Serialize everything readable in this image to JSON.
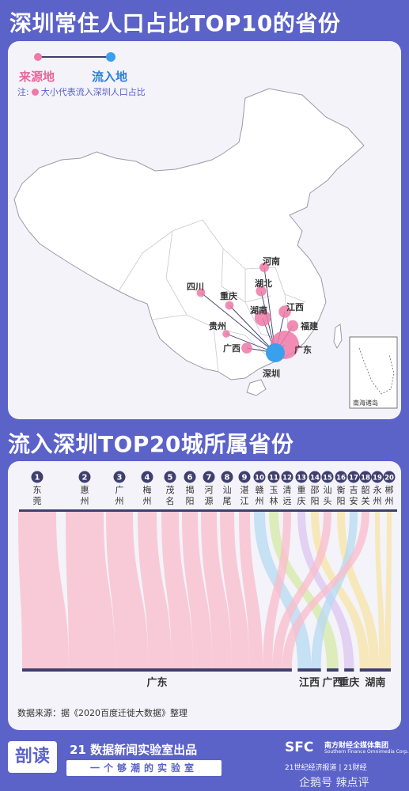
{
  "header": {
    "title": "深圳常住人口占比TOP10的省份"
  },
  "legend": {
    "source": "来源地",
    "destination": "流入地",
    "note_prefix": "注:",
    "note_text": "大小代表流入深圳人口占比",
    "source_color": "#e8659a",
    "destination_color": "#2c7fd8"
  },
  "section2": {
    "title": "流入深圳TOP20城所属省份"
  },
  "source_note": "数据来源：据《2020百度迁徙大数据》整理",
  "footer": {
    "logo": "剖读",
    "line1": "21 数据新闻实验室出品",
    "line2": "一个够潮的实验室",
    "sfc": "SFC",
    "sfc_cn": "南方财经全媒体集团",
    "sfc_en": "Southern Finance Omnimedia Corp.",
    "brands": "21世纪经济报道 | 21财经",
    "watermark": "企鹅号 辣点评"
  },
  "chart_data": [
    {
      "type": "flow-map",
      "title": "深圳常住人口占比TOP10的省份",
      "destination": "深圳",
      "sources": [
        {
          "name": "广东",
          "size": 5
        },
        {
          "name": "福建",
          "size": 1.4
        },
        {
          "name": "江西",
          "size": 1.6
        },
        {
          "name": "湖南",
          "size": 2.4
        },
        {
          "name": "湖北",
          "size": 1.2
        },
        {
          "name": "河南",
          "size": 1
        },
        {
          "name": "重庆",
          "size": 0.8
        },
        {
          "name": "四川",
          "size": 0.8
        },
        {
          "name": "贵州",
          "size": 0.6
        },
        {
          "name": "广西",
          "size": 1.3
        }
      ],
      "inset_label": "南海诸岛"
    },
    {
      "type": "sankey",
      "title": "流入深圳TOP20城所属省份",
      "cities": [
        {
          "rank": "1",
          "name": "东莞",
          "province": "广东"
        },
        {
          "rank": "2",
          "name": "惠州",
          "province": "广东"
        },
        {
          "rank": "3",
          "name": "广州",
          "province": "广东"
        },
        {
          "rank": "4",
          "name": "梅州",
          "province": "广东"
        },
        {
          "rank": "5",
          "name": "茂名",
          "province": "广东"
        },
        {
          "rank": "6",
          "name": "揭阳",
          "province": "广东"
        },
        {
          "rank": "7",
          "name": "河源",
          "province": "广东"
        },
        {
          "rank": "8",
          "name": "汕尾",
          "province": "广东"
        },
        {
          "rank": "9",
          "name": "湛江",
          "province": "广东"
        },
        {
          "rank": "10",
          "name": "赣州",
          "province": "江西"
        },
        {
          "rank": "11",
          "name": "玉林",
          "province": "广西"
        },
        {
          "rank": "12",
          "name": "清远",
          "province": "广东"
        },
        {
          "rank": "13",
          "name": "重庆",
          "province": "重庆"
        },
        {
          "rank": "14",
          "name": "邵阳",
          "province": "湖南"
        },
        {
          "rank": "15",
          "name": "汕头",
          "province": "广东"
        },
        {
          "rank": "16",
          "name": "衡阳",
          "province": "湖南"
        },
        {
          "rank": "17",
          "name": "吉安",
          "province": "江西"
        },
        {
          "rank": "18",
          "name": "韶关",
          "province": "广东"
        },
        {
          "rank": "19",
          "name": "永州",
          "province": "湖南"
        },
        {
          "rank": "20",
          "name": "郴州",
          "province": "湖南"
        }
      ],
      "provinces": [
        "广东",
        "江西",
        "广西",
        "重庆",
        "湖南"
      ],
      "colors": {
        "广东": "#f9bccb",
        "江西": "#b7d9f2",
        "广西": "#d5eaa6",
        "重庆": "#dcc6ef",
        "湖南": "#f8e4a6"
      }
    }
  ]
}
